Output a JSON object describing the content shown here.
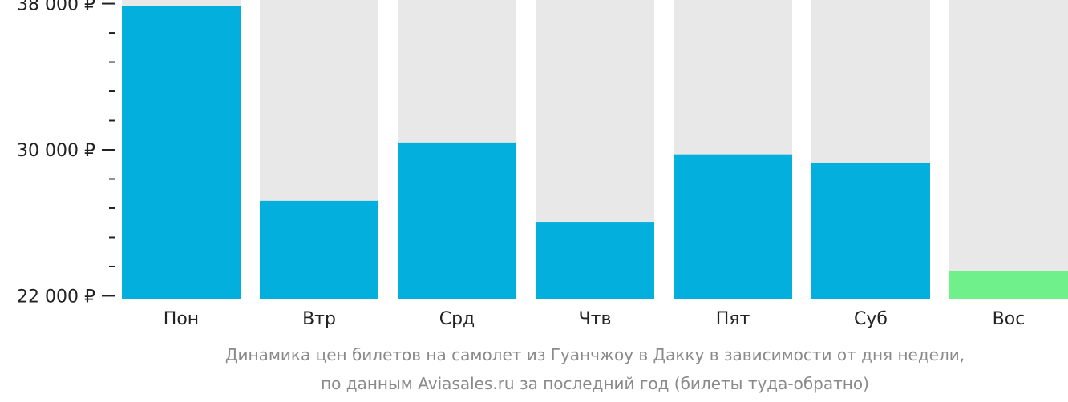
{
  "chart_data": {
    "type": "bar",
    "categories": [
      "Пон",
      "Втр",
      "Срд",
      "Чтв",
      "Пят",
      "Суб",
      "Вос"
    ],
    "values": [
      37850,
      27200,
      30400,
      26050,
      29750,
      29300,
      23350
    ],
    "ylim": [
      21800,
      38200
    ],
    "yticks": [
      {
        "value": 38000,
        "label": "38 000 ₽"
      },
      {
        "value": 30000,
        "label": "30 000 ₽"
      },
      {
        "value": 22000,
        "label": "22 000 ₽"
      }
    ],
    "minor_tick_step": 1600,
    "highlight_category": "Вос",
    "colors": {
      "bar": "#02afdd",
      "highlight": "#6ff08b",
      "track": "#e8e8e8",
      "axis": "#222222"
    },
    "caption_lines": [
      "Динамика цен билетов на самолет из Гуанчжоу в Дакку в зависимости от дня недели,",
      "по данным Aviasales.ru за последний год (билеты туда-обратно)"
    ]
  }
}
